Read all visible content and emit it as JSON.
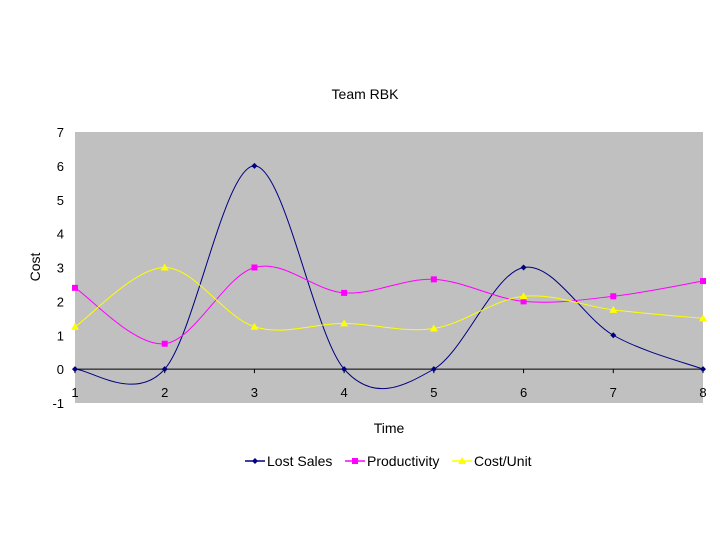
{
  "chart_data": {
    "type": "line",
    "title": "Team RBK",
    "xlabel": "Time",
    "ylabel": "Cost",
    "x": [
      1,
      2,
      3,
      4,
      5,
      6,
      7,
      8
    ],
    "ylim": [
      -1,
      7
    ],
    "yticks": [
      -1,
      0,
      1,
      2,
      3,
      4,
      5,
      6,
      7
    ],
    "grid": false,
    "plot_background": "#c0c0c0",
    "legend_position": "bottom",
    "series": [
      {
        "name": "Lost Sales",
        "color": "#000080",
        "marker": "diamond",
        "values": [
          0,
          0,
          6,
          0,
          0,
          3,
          1,
          0
        ]
      },
      {
        "name": "Productivity",
        "color": "#ff00ff",
        "marker": "square",
        "values": [
          2.4,
          0.75,
          3,
          2.25,
          2.65,
          2,
          2.15,
          2.6
        ]
      },
      {
        "name": "Cost/Unit",
        "color": "#ffff00",
        "marker": "triangle",
        "values": [
          1.25,
          3,
          1.25,
          1.35,
          1.2,
          2.15,
          1.75,
          1.5
        ]
      }
    ]
  }
}
